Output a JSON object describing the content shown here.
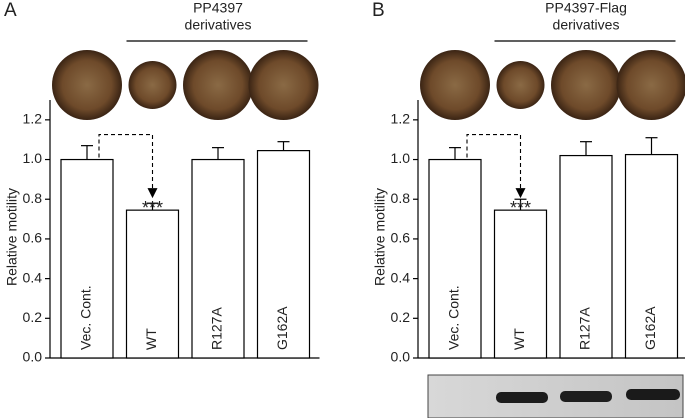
{
  "chart_data": [
    {
      "type": "bar",
      "panel_label": "A",
      "title": "PP4397",
      "subtitle": "derivatives",
      "ylabel": "Relative motility",
      "categories": [
        "Vec. Cont.",
        "WT",
        "R127A",
        "G162A"
      ],
      "values": [
        1.0,
        0.745,
        1.0,
        1.045
      ],
      "errors": [
        0.07,
        0.035,
        0.06,
        0.045
      ],
      "color": "#ffffff",
      "annotation": "***",
      "ylim": [
        0,
        1.3
      ],
      "yticks": [
        {
          "value": 0,
          "label": "0.0"
        },
        0.2,
        0.4,
        0.6,
        0.8,
        {
          "value": 1,
          "label": "1.0"
        },
        1.2
      ]
    },
    {
      "type": "bar",
      "panel_label": "B",
      "title": "PP4397-Flag",
      "subtitle": "derivatives",
      "ylabel": "Relative motility",
      "categories": [
        "Vec. Cont.",
        "WT",
        "R127A",
        "G162A"
      ],
      "values": [
        1.0,
        0.745,
        1.02,
        1.025
      ],
      "errors": [
        0.06,
        0.055,
        0.07,
        0.085
      ],
      "color": "#ffffff",
      "annotation": "***",
      "ylim": [
        0,
        1.3
      ],
      "yticks": [
        {
          "value": 0,
          "label": "0.0"
        },
        0.2,
        0.4,
        0.6,
        0.8,
        {
          "value": 1,
          "label": "1.0"
        },
        1.2
      ]
    }
  ]
}
